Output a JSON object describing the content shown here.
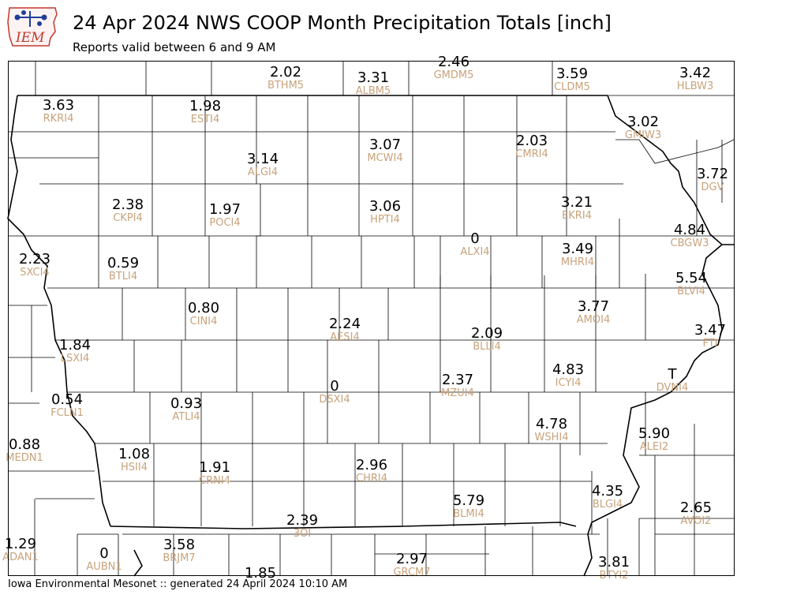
{
  "header": {
    "logo_text": "IEM",
    "title": "24 Apr 2024 NWS COOP Month Precipitation Totals [inch]",
    "subtitle": "Reports valid between 6 and 9 AM"
  },
  "footer": {
    "text": "Iowa Environmental Mesonet :: generated 24 April 2024 10:10 AM"
  },
  "colors": {
    "value": "#000000",
    "station_id": "#c8a27a",
    "county_lines": "#000000",
    "state_lines": "#000000",
    "logo": "#1f3f99",
    "logo_outline": "#c0392b"
  },
  "stations": [
    {
      "value": "2.02",
      "id": "BTHM5"
    },
    {
      "value": "3.31",
      "id": "ALBM5"
    },
    {
      "value": "2.46",
      "id": "GMDM5"
    },
    {
      "value": "3.59",
      "id": "CLDM5"
    },
    {
      "value": "3.42",
      "id": "HLBW3"
    },
    {
      "value": "3.63",
      "id": "RKRI4"
    },
    {
      "value": "1.98",
      "id": "ESTI4"
    },
    {
      "value": "3.02",
      "id": "GMIW3"
    },
    {
      "value": "2.03",
      "id": "CMRI4"
    },
    {
      "value": "3.07",
      "id": "MCWI4"
    },
    {
      "value": "3.14",
      "id": "ALGI4"
    },
    {
      "value": "3.72",
      "id": "DGV"
    },
    {
      "value": "2.38",
      "id": "CKPI4"
    },
    {
      "value": "1.97",
      "id": "POCI4"
    },
    {
      "value": "3.06",
      "id": "HPTI4"
    },
    {
      "value": "3.21",
      "id": "EKRI4"
    },
    {
      "value": "4.84",
      "id": "CBGW3"
    },
    {
      "value": "0",
      "id": "ALXI4"
    },
    {
      "value": "3.49",
      "id": "MHRI4"
    },
    {
      "value": "2.23",
      "id": "SXCI4"
    },
    {
      "value": "0.59",
      "id": "BTLI4"
    },
    {
      "value": "5.54",
      "id": "BLVI4"
    },
    {
      "value": "0.80",
      "id": "CINI4"
    },
    {
      "value": "3.77",
      "id": "AMOI4"
    },
    {
      "value": "2.24",
      "id": "AESI4"
    },
    {
      "value": "3.47",
      "id": "FTI"
    },
    {
      "value": "2.09",
      "id": "BLLI4"
    },
    {
      "value": "1.84",
      "id": "LSXI4"
    },
    {
      "value": "4.83",
      "id": "ICYI4"
    },
    {
      "value": "T",
      "id": "DVNI4"
    },
    {
      "value": "0",
      "id": "DSXI4"
    },
    {
      "value": "2.37",
      "id": "MZUI4"
    },
    {
      "value": "0.54",
      "id": "FCLN1"
    },
    {
      "value": "0.93",
      "id": "ATLI4"
    },
    {
      "value": "4.78",
      "id": "WSHI4"
    },
    {
      "value": "5.90",
      "id": "ALEI2"
    },
    {
      "value": "0.88",
      "id": "MEDN1"
    },
    {
      "value": "1.08",
      "id": "HSII4"
    },
    {
      "value": "1.91",
      "id": "CRNI4"
    },
    {
      "value": "2.96",
      "id": "CHRI4"
    },
    {
      "value": "4.35",
      "id": "BLGI4"
    },
    {
      "value": "5.79",
      "id": "BLMI4"
    },
    {
      "value": "2.65",
      "id": "AVOI2"
    },
    {
      "value": "2.39",
      "id": "3OI"
    },
    {
      "value": "1.29",
      "id": "ADAN1"
    },
    {
      "value": "0",
      "id": "AUBN1"
    },
    {
      "value": "3.58",
      "id": "BRJM7"
    },
    {
      "value": "2.97",
      "id": "GRCM7"
    },
    {
      "value": "3.81",
      "id": "BTYI2"
    },
    {
      "value": "1.85",
      "id": ""
    }
  ]
}
